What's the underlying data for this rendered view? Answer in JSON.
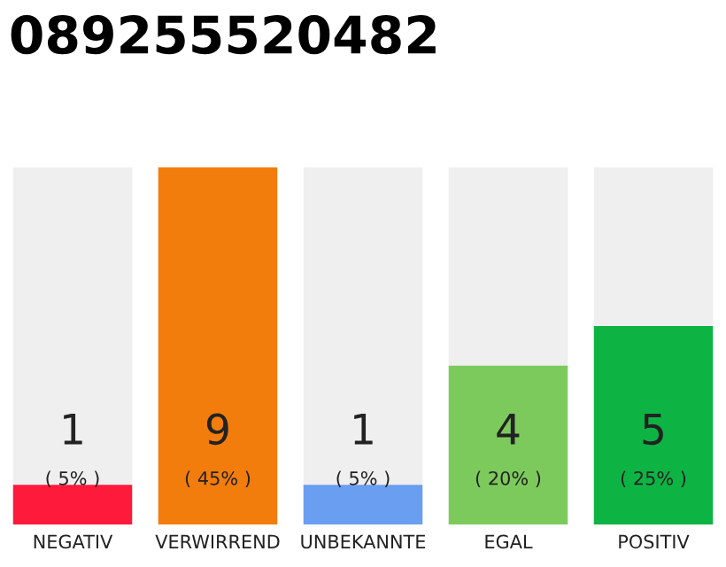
{
  "chart_data": {
    "type": "bar",
    "title": "089255520482",
    "categories": [
      "NEGATIV",
      "VERWIRREND",
      "UNBEKANNTE",
      "EGAL",
      "POSITIV"
    ],
    "values": [
      1,
      9,
      1,
      4,
      5
    ],
    "colors": [
      "#fe1a3b",
      "#f27d0c",
      "#6a9ef0",
      "#7dca5c",
      "#0db444"
    ],
    "value_labels": [
      "1",
      "9",
      "1",
      "4",
      "5"
    ],
    "annotations": [
      "( 5% )",
      "( 45% )",
      "( 5% )",
      "( 20% )",
      "( 25% )"
    ],
    "grid": false,
    "legend": false
  }
}
